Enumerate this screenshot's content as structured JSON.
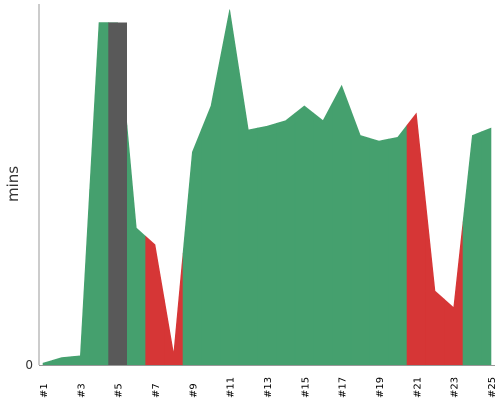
{
  "chart_data": {
    "type": "area",
    "title": "",
    "xlabel": "",
    "ylabel": "mins",
    "y_tick_labels": [
      "0"
    ],
    "x_tick_labels": [
      "#1",
      "#3",
      "#5",
      "#7",
      "#9",
      "#11",
      "#13",
      "#15",
      "#17",
      "#19",
      "#21",
      "#23",
      "#25"
    ],
    "x": [
      1,
      2,
      3,
      4,
      5,
      6,
      7,
      8,
      9,
      10,
      11,
      12,
      13,
      14,
      15,
      16,
      17,
      18,
      19,
      20,
      21,
      22,
      23,
      24,
      25
    ],
    "values": [
      0.1,
      0.4,
      0.5,
      18.5,
      18.5,
      7.4,
      6.5,
      0.6,
      11.5,
      14.0,
      19.2,
      12.7,
      12.9,
      13.2,
      14.0,
      13.2,
      15.1,
      12.4,
      12.1,
      12.3,
      13.6,
      4.0,
      3.1,
      12.4,
      12.8
    ],
    "bar_values": [
      null,
      null,
      null,
      null,
      18.5,
      null,
      null,
      null,
      null,
      null,
      null,
      null,
      null,
      null,
      null,
      null,
      null,
      null,
      null,
      null,
      null,
      null,
      null,
      null,
      null
    ],
    "ylim": [
      0,
      19.5
    ],
    "grid": false,
    "legend": "none",
    "colors": {
      "pass": "#45a06e",
      "fail": "#d63636",
      "aborted": "#595959",
      "axis": "#999999",
      "text": "#333333"
    }
  }
}
